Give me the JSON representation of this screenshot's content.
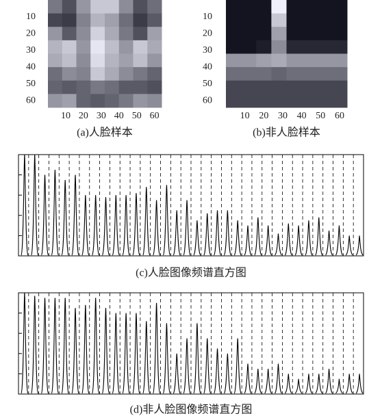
{
  "chart_data": [
    {
      "type": "image",
      "title": "(a)人脸样本",
      "xlim": [
        0,
        64
      ],
      "ylim": [
        0,
        64
      ],
      "xticks": [
        10,
        20,
        30,
        40,
        50,
        60
      ],
      "yticks": [
        10,
        20,
        30,
        40,
        50,
        60
      ],
      "values": [
        [
          120,
          80,
          150,
          200,
          200,
          140,
          80,
          110
        ],
        [
          70,
          60,
          130,
          180,
          160,
          110,
          60,
          90
        ],
        [
          150,
          90,
          140,
          210,
          170,
          120,
          80,
          160
        ],
        [
          180,
          200,
          150,
          230,
          190,
          150,
          200,
          170
        ],
        [
          170,
          190,
          140,
          220,
          180,
          160,
          190,
          150
        ],
        [
          110,
          140,
          130,
          200,
          170,
          140,
          120,
          100
        ],
        [
          100,
          90,
          100,
          120,
          110,
          90,
          90,
          80
        ],
        [
          150,
          160,
          100,
          90,
          100,
          120,
          150,
          140
        ]
      ]
    },
    {
      "type": "image",
      "title": "(b)非人脸样本",
      "xlim": [
        0,
        64
      ],
      "ylim": [
        0,
        64
      ],
      "xticks": [
        10,
        20,
        30,
        40,
        50,
        60
      ],
      "yticks": [
        10,
        20,
        30,
        40,
        50,
        60
      ],
      "values": [
        [
          20,
          20,
          20,
          240,
          20,
          20,
          20,
          20
        ],
        [
          20,
          20,
          20,
          200,
          20,
          20,
          20,
          20
        ],
        [
          20,
          20,
          20,
          160,
          20,
          20,
          20,
          20
        ],
        [
          20,
          20,
          30,
          140,
          40,
          40,
          40,
          40
        ],
        [
          150,
          150,
          160,
          170,
          150,
          150,
          150,
          150
        ],
        [
          110,
          110,
          110,
          100,
          110,
          110,
          110,
          110
        ],
        [
          70,
          70,
          70,
          70,
          70,
          70,
          70,
          70
        ],
        [
          70,
          70,
          70,
          70,
          70,
          70,
          70,
          70
        ]
      ]
    },
    {
      "type": "spectrum",
      "title": "(c)人脸图像频谱直方图",
      "xlim": [
        0,
        34
      ],
      "ylim": [
        0,
        1
      ],
      "xticks": [
        1,
        2,
        3,
        4,
        5,
        6,
        7,
        8,
        9,
        10,
        11,
        12,
        13,
        14,
        15,
        16,
        17,
        18,
        19,
        20,
        21,
        22,
        23,
        24,
        25,
        26,
        27,
        28,
        29,
        30,
        31,
        32,
        33
      ],
      "yticks": [
        0.2,
        0.4,
        0.6,
        0.8
      ],
      "color": "#000000",
      "x": [
        0.6,
        1.6,
        2.6,
        3.6,
        4.6,
        5.6,
        6.6,
        7.6,
        8.6,
        9.6,
        10.6,
        11.6,
        12.6,
        13.6,
        14.6,
        15.6,
        16.6,
        17.6,
        18.6,
        19.6,
        20.6,
        21.6,
        22.6,
        23.6,
        24.6,
        25.6,
        26.6,
        27.6,
        28.6,
        29.6,
        30.6,
        31.6,
        32.6,
        33.6
      ],
      "values": [
        1,
        1,
        0.8,
        0.85,
        0.75,
        0.8,
        0.6,
        0.6,
        0.58,
        0.6,
        0.6,
        0.62,
        0.68,
        0.55,
        0.7,
        0.45,
        0.55,
        0.35,
        0.42,
        0.45,
        0.45,
        0.35,
        0.3,
        0.38,
        0.3,
        0.22,
        0.32,
        0.3,
        0.35,
        0.38,
        0.25,
        0.3,
        0.2,
        0.2
      ]
    },
    {
      "type": "spectrum",
      "title": "(d)非人脸图像频谱直方图",
      "xlim": [
        0,
        34
      ],
      "ylim": [
        0,
        1
      ],
      "xticks": [
        1,
        2,
        3,
        4,
        5,
        6,
        7,
        8,
        9,
        10,
        11,
        12,
        13,
        14,
        15,
        16,
        17,
        18,
        19,
        20,
        21,
        22,
        23,
        24,
        25,
        26,
        27,
        28,
        29,
        30,
        31,
        32,
        33
      ],
      "yticks": [
        0.2,
        0.4,
        0.6,
        0.8
      ],
      "color": "#000000",
      "x": [
        0.6,
        1.6,
        2.6,
        3.6,
        4.6,
        5.6,
        6.6,
        7.6,
        8.6,
        9.6,
        10.6,
        11.6,
        12.6,
        13.6,
        14.6,
        15.6,
        16.6,
        17.6,
        18.6,
        19.6,
        20.6,
        21.6,
        22.6,
        23.6,
        24.6,
        25.6,
        26.6,
        27.6,
        28.6,
        29.6,
        30.6,
        31.6,
        32.6,
        33.6
      ],
      "values": [
        1,
        0.97,
        0.95,
        0.95,
        0.95,
        0.85,
        0.88,
        0.95,
        0.85,
        0.8,
        0.8,
        0.8,
        0.72,
        0.9,
        0.7,
        0.4,
        0.55,
        0.7,
        0.55,
        0.45,
        0.4,
        0.55,
        0.3,
        0.25,
        0.25,
        0.3,
        0.2,
        0.15,
        0.2,
        0.2,
        0.25,
        0.15,
        0.2,
        0.2
      ]
    }
  ]
}
